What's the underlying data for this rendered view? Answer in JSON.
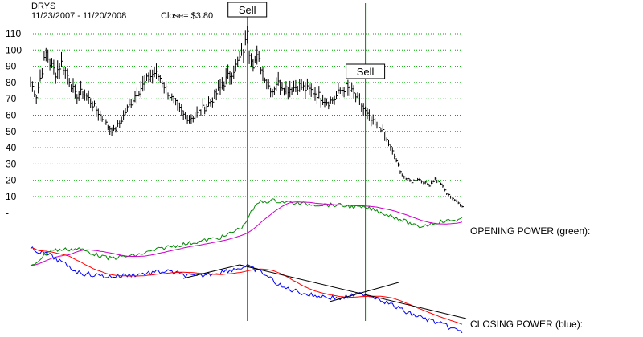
{
  "header": {
    "ticker": "DRYS",
    "date_range": "11/23/2007 - 11/20/2008",
    "close_text": "Close= $3.80"
  },
  "colors": {
    "price": "#000000",
    "grid": "#00aa00",
    "signal_line": "#008800",
    "opening_power": "#008800",
    "closing_power": "#0000ff",
    "ma_opening": "#cc00cc",
    "ma_closing": "#ff0000",
    "trendline": "#000000"
  },
  "indicators": {
    "opening_label": "OPENING POWER (green):",
    "closing_label": "CLOSING POWER (blue):"
  },
  "chart_data": {
    "type": "line",
    "title": "DRYS",
    "subtitle": "11/23/2007 - 11/20/2008",
    "y_ticks": [
      "110",
      "100",
      "90",
      "80",
      "70",
      "60",
      "50",
      "40",
      "30",
      "20",
      "10",
      "-"
    ],
    "ylim": [
      0,
      110
    ],
    "grid": true,
    "price_series": {
      "name": "DRYS",
      "anchors": [
        [
          0,
          80
        ],
        [
          3,
          72
        ],
        [
          6,
          88
        ],
        [
          8,
          98
        ],
        [
          10,
          92
        ],
        [
          13,
          86
        ],
        [
          16,
          92
        ],
        [
          20,
          82
        ],
        [
          23,
          72
        ],
        [
          27,
          74
        ],
        [
          30,
          70
        ],
        [
          33,
          65
        ],
        [
          36,
          60
        ],
        [
          38,
          56
        ],
        [
          41,
          52
        ],
        [
          43,
          50
        ],
        [
          46,
          55
        ],
        [
          49,
          62
        ],
        [
          52,
          68
        ],
        [
          55,
          74
        ],
        [
          58,
          78
        ],
        [
          61,
          83
        ],
        [
          64,
          86
        ],
        [
          67,
          83
        ],
        [
          70,
          76
        ],
        [
          73,
          70
        ],
        [
          76,
          65
        ],
        [
          79,
          60
        ],
        [
          82,
          58
        ],
        [
          85,
          60
        ],
        [
          88,
          63
        ],
        [
          91,
          66
        ],
        [
          94,
          70
        ],
        [
          97,
          75
        ],
        [
          100,
          80
        ],
        [
          103,
          85
        ],
        [
          106,
          90
        ],
        [
          109,
          97
        ],
        [
          111,
          104
        ],
        [
          112,
          114
        ],
        [
          113,
          100
        ],
        [
          115,
          92
        ],
        [
          117,
          95
        ],
        [
          119,
          90
        ],
        [
          121,
          84
        ],
        [
          123,
          78
        ],
        [
          125,
          75
        ],
        [
          127,
          80
        ],
        [
          130,
          78
        ],
        [
          133,
          76
        ],
        [
          136,
          77
        ],
        [
          139,
          78
        ],
        [
          142,
          76
        ],
        [
          145,
          75
        ],
        [
          148,
          73
        ],
        [
          151,
          70
        ],
        [
          154,
          68
        ],
        [
          157,
          70
        ],
        [
          160,
          75
        ],
        [
          163,
          77
        ],
        [
          166,
          74
        ],
        [
          169,
          70
        ],
        [
          172,
          64
        ],
        [
          175,
          58
        ],
        [
          178,
          54
        ],
        [
          181,
          52
        ],
        [
          183,
          47
        ],
        [
          186,
          40
        ],
        [
          189,
          32
        ],
        [
          191,
          25
        ],
        [
          194,
          21
        ],
        [
          197,
          19
        ],
        [
          200,
          21
        ],
        [
          203,
          19
        ],
        [
          206,
          17
        ],
        [
          209,
          21
        ],
        [
          212,
          18
        ],
        [
          215,
          12
        ],
        [
          218,
          9
        ],
        [
          221,
          6
        ],
        [
          223,
          3.8
        ]
      ]
    },
    "signals": [
      {
        "label": "Sell",
        "bar_index": 112
      },
      {
        "label": "Sell",
        "bar_index": 173
      }
    ]
  }
}
